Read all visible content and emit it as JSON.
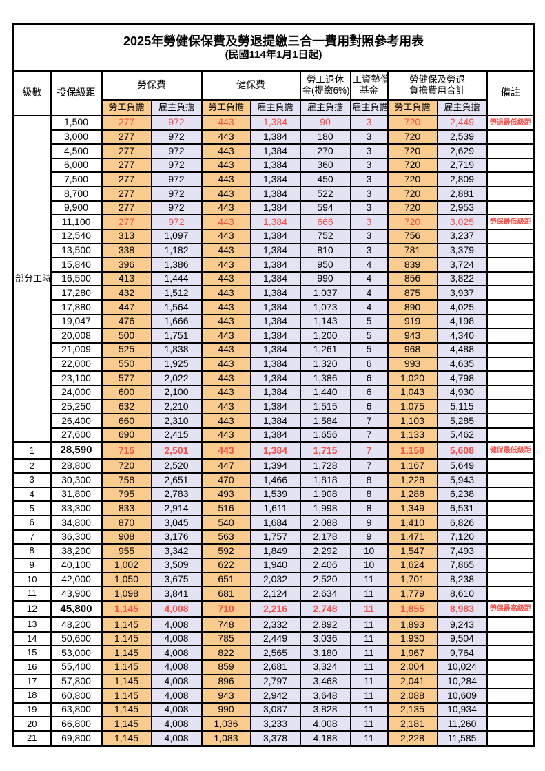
{
  "title": "2025年勞健保保費及勞退提繳三合一費用對照參考用表",
  "subtitle": "(民國114年1月1日起)",
  "colors": {
    "employee_bg": "#f9cb8e",
    "employer_bg": "#e3e3f3",
    "highlight_red": "#f25048",
    "border": "#000000"
  },
  "header": {
    "level": "級數",
    "bracket": "投保級距",
    "labor_insurance": "勞保費",
    "health_insurance": "健保費",
    "pension_line1": "勞工退休",
    "pension_line2": "金(提繳6%)",
    "wage_fund_line1": "工資墊償",
    "wage_fund_line2": "基金",
    "total_line1": "勞健保及勞退",
    "total_line2": "負擔費用合計",
    "remark": "備註",
    "employee": "勞工負擔",
    "employer": "雇主負擔"
  },
  "table": {
    "part_time_label": "部分工時",
    "part_time_rowspan": 23,
    "rows": [
      {
        "level": "",
        "bracket": "1,500",
        "values": [
          "277",
          "972",
          "443",
          "1,384",
          "90",
          "3",
          "720",
          "2,449"
        ],
        "remark": "勞退最低級距",
        "red": true
      },
      {
        "level": "",
        "bracket": "3,000",
        "values": [
          "277",
          "972",
          "443",
          "1,384",
          "180",
          "3",
          "720",
          "2,539"
        ],
        "remark": ""
      },
      {
        "level": "",
        "bracket": "4,500",
        "values": [
          "277",
          "972",
          "443",
          "1,384",
          "270",
          "3",
          "720",
          "2,629"
        ],
        "remark": ""
      },
      {
        "level": "",
        "bracket": "6,000",
        "values": [
          "277",
          "972",
          "443",
          "1,384",
          "360",
          "3",
          "720",
          "2,719"
        ],
        "remark": ""
      },
      {
        "level": "",
        "bracket": "7,500",
        "values": [
          "277",
          "972",
          "443",
          "1,384",
          "450",
          "3",
          "720",
          "2,809"
        ],
        "remark": ""
      },
      {
        "level": "",
        "bracket": "8,700",
        "values": [
          "277",
          "972",
          "443",
          "1,384",
          "522",
          "3",
          "720",
          "2,881"
        ],
        "remark": ""
      },
      {
        "level": "",
        "bracket": "9,900",
        "values": [
          "277",
          "972",
          "443",
          "1,384",
          "594",
          "3",
          "720",
          "2,953"
        ],
        "remark": ""
      },
      {
        "level": "",
        "bracket": "11,100",
        "values": [
          "277",
          "972",
          "443",
          "1,384",
          "666",
          "3",
          "720",
          "3,025"
        ],
        "remark": "勞保最低級距",
        "red": true
      },
      {
        "level": "",
        "bracket": "12,540",
        "values": [
          "313",
          "1,097",
          "443",
          "1,384",
          "752",
          "3",
          "756",
          "3,237"
        ],
        "remark": ""
      },
      {
        "level": "",
        "bracket": "13,500",
        "values": [
          "338",
          "1,182",
          "443",
          "1,384",
          "810",
          "3",
          "781",
          "3,379"
        ],
        "remark": ""
      },
      {
        "level": "",
        "bracket": "15,840",
        "values": [
          "396",
          "1,386",
          "443",
          "1,384",
          "950",
          "4",
          "839",
          "3,724"
        ],
        "remark": ""
      },
      {
        "level": "",
        "bracket": "16,500",
        "values": [
          "413",
          "1,444",
          "443",
          "1,384",
          "990",
          "4",
          "856",
          "3,822"
        ],
        "remark": ""
      },
      {
        "level": "",
        "bracket": "17,280",
        "values": [
          "432",
          "1,512",
          "443",
          "1,384",
          "1,037",
          "4",
          "875",
          "3,937"
        ],
        "remark": ""
      },
      {
        "level": "",
        "bracket": "17,880",
        "values": [
          "447",
          "1,564",
          "443",
          "1,384",
          "1,073",
          "4",
          "890",
          "4,025"
        ],
        "remark": ""
      },
      {
        "level": "",
        "bracket": "19,047",
        "values": [
          "476",
          "1,666",
          "443",
          "1,384",
          "1,143",
          "5",
          "919",
          "4,198"
        ],
        "remark": ""
      },
      {
        "level": "",
        "bracket": "20,008",
        "values": [
          "500",
          "1,751",
          "443",
          "1,384",
          "1,200",
          "5",
          "943",
          "4,340"
        ],
        "remark": ""
      },
      {
        "level": "",
        "bracket": "21,009",
        "values": [
          "525",
          "1,838",
          "443",
          "1,384",
          "1,261",
          "5",
          "968",
          "4,488"
        ],
        "remark": ""
      },
      {
        "level": "",
        "bracket": "22,000",
        "values": [
          "550",
          "1,925",
          "443",
          "1,384",
          "1,320",
          "6",
          "993",
          "4,635"
        ],
        "remark": ""
      },
      {
        "level": "",
        "bracket": "23,100",
        "values": [
          "577",
          "2,022",
          "443",
          "1,384",
          "1,386",
          "6",
          "1,020",
          "4,798"
        ],
        "remark": ""
      },
      {
        "level": "",
        "bracket": "24,000",
        "values": [
          "600",
          "2,100",
          "443",
          "1,384",
          "1,440",
          "6",
          "1,043",
          "4,930"
        ],
        "remark": ""
      },
      {
        "level": "",
        "bracket": "25,250",
        "values": [
          "632",
          "2,210",
          "443",
          "1,384",
          "1,515",
          "6",
          "1,075",
          "5,115"
        ],
        "remark": ""
      },
      {
        "level": "",
        "bracket": "26,400",
        "values": [
          "660",
          "2,310",
          "443",
          "1,384",
          "1,584",
          "7",
          "1,103",
          "5,285"
        ],
        "remark": ""
      },
      {
        "level": "",
        "bracket": "27,600",
        "values": [
          "690",
          "2,415",
          "443",
          "1,384",
          "1,656",
          "7",
          "1,133",
          "5,462"
        ],
        "remark": ""
      },
      {
        "level": "1",
        "bracket": "28,590",
        "values": [
          "715",
          "2,501",
          "443",
          "1,384",
          "1,715",
          "7",
          "1,158",
          "5,608"
        ],
        "remark": "健保最低級距",
        "red": true,
        "thick": true
      },
      {
        "level": "2",
        "bracket": "28,800",
        "values": [
          "720",
          "2,520",
          "447",
          "1,394",
          "1,728",
          "7",
          "1,167",
          "5,649"
        ],
        "remark": ""
      },
      {
        "level": "3",
        "bracket": "30,300",
        "values": [
          "758",
          "2,651",
          "470",
          "1,466",
          "1,818",
          "8",
          "1,228",
          "5,943"
        ],
        "remark": ""
      },
      {
        "level": "4",
        "bracket": "31,800",
        "values": [
          "795",
          "2,783",
          "493",
          "1,539",
          "1,908",
          "8",
          "1,288",
          "6,238"
        ],
        "remark": ""
      },
      {
        "level": "5",
        "bracket": "33,300",
        "values": [
          "833",
          "2,914",
          "516",
          "1,611",
          "1,998",
          "8",
          "1,349",
          "6,531"
        ],
        "remark": ""
      },
      {
        "level": "6",
        "bracket": "34,800",
        "values": [
          "870",
          "3,045",
          "540",
          "1,684",
          "2,088",
          "9",
          "1,410",
          "6,826"
        ],
        "remark": ""
      },
      {
        "level": "7",
        "bracket": "36,300",
        "values": [
          "908",
          "3,176",
          "563",
          "1,757",
          "2,178",
          "9",
          "1,471",
          "7,120"
        ],
        "remark": ""
      },
      {
        "level": "8",
        "bracket": "38,200",
        "values": [
          "955",
          "3,342",
          "592",
          "1,849",
          "2,292",
          "10",
          "1,547",
          "7,493"
        ],
        "remark": ""
      },
      {
        "level": "9",
        "bracket": "40,100",
        "values": [
          "1,002",
          "3,509",
          "622",
          "1,940",
          "2,406",
          "10",
          "1,624",
          "7,865"
        ],
        "remark": ""
      },
      {
        "level": "10",
        "bracket": "42,000",
        "values": [
          "1,050",
          "3,675",
          "651",
          "2,032",
          "2,520",
          "11",
          "1,701",
          "8,238"
        ],
        "remark": ""
      },
      {
        "level": "11",
        "bracket": "43,900",
        "values": [
          "1,098",
          "3,841",
          "681",
          "2,124",
          "2,634",
          "11",
          "1,779",
          "8,610"
        ],
        "remark": ""
      },
      {
        "level": "12",
        "bracket": "45,800",
        "values": [
          "1,145",
          "4,008",
          "710",
          "2,216",
          "2,748",
          "11",
          "1,855",
          "8,983"
        ],
        "remark": "勞保最高級距",
        "red": true,
        "thick": true
      },
      {
        "level": "13",
        "bracket": "48,200",
        "values": [
          "1,145",
          "4,008",
          "748",
          "2,332",
          "2,892",
          "11",
          "1,893",
          "9,243"
        ],
        "remark": ""
      },
      {
        "level": "14",
        "bracket": "50,600",
        "values": [
          "1,145",
          "4,008",
          "785",
          "2,449",
          "3,036",
          "11",
          "1,930",
          "9,504"
        ],
        "remark": ""
      },
      {
        "level": "15",
        "bracket": "53,000",
        "values": [
          "1,145",
          "4,008",
          "822",
          "2,565",
          "3,180",
          "11",
          "1,967",
          "9,764"
        ],
        "remark": ""
      },
      {
        "level": "16",
        "bracket": "55,400",
        "values": [
          "1,145",
          "4,008",
          "859",
          "2,681",
          "3,324",
          "11",
          "2,004",
          "10,024"
        ],
        "remark": ""
      },
      {
        "level": "17",
        "bracket": "57,800",
        "values": [
          "1,145",
          "4,008",
          "896",
          "2,797",
          "3,468",
          "11",
          "2,041",
          "10,284"
        ],
        "remark": ""
      },
      {
        "level": "18",
        "bracket": "60,800",
        "values": [
          "1,145",
          "4,008",
          "943",
          "2,942",
          "3,648",
          "11",
          "2,088",
          "10,609"
        ],
        "remark": ""
      },
      {
        "level": "19",
        "bracket": "63,800",
        "values": [
          "1,145",
          "4,008",
          "990",
          "3,087",
          "3,828",
          "11",
          "2,135",
          "10,934"
        ],
        "remark": ""
      },
      {
        "level": "20",
        "bracket": "66,800",
        "values": [
          "1,145",
          "4,008",
          "1,036",
          "3,233",
          "4,008",
          "11",
          "2,181",
          "11,260"
        ],
        "remark": ""
      },
      {
        "level": "21",
        "bracket": "69,800",
        "values": [
          "1,145",
          "4,008",
          "1,083",
          "3,378",
          "4,188",
          "11",
          "2,228",
          "11,585"
        ],
        "remark": ""
      }
    ]
  }
}
